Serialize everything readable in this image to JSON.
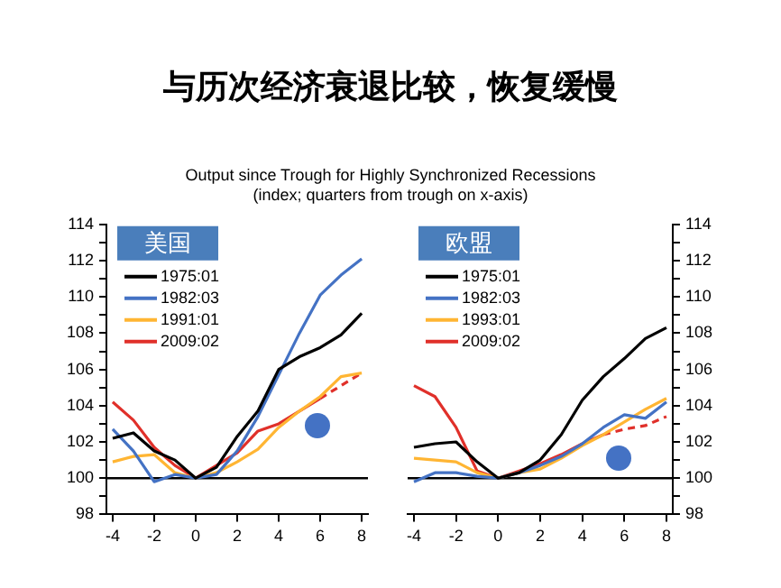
{
  "chart_data": [
    {
      "type": "line",
      "title": "与历次经济衰退比较，恢复缓慢",
      "subtitle": "Output since Trough for Highly Synchronized Recessions\n(index; quarters from trough on x-axis)",
      "annotations": [
        "美国"
      ],
      "x": [
        -4,
        -3,
        -2,
        -1,
        0,
        1,
        2,
        3,
        4,
        5,
        6,
        7,
        8
      ],
      "series": [
        {
          "name": "1975:01",
          "color": "#000000",
          "values": [
            102.2,
            102.5,
            101.5,
            101.0,
            100,
            100.6,
            102.3,
            103.7,
            106.0,
            106.7,
            107.2,
            107.9,
            109.1
          ]
        },
        {
          "name": "1982:03",
          "color": "#4472c4",
          "values": [
            102.7,
            101.5,
            99.8,
            100.2,
            100,
            100.2,
            101.5,
            103.4,
            105.7,
            108.0,
            110.1,
            111.2,
            112.1
          ]
        },
        {
          "name": "1991:01",
          "color": "#ffb533",
          "values": [
            100.9,
            101.2,
            101.3,
            100.3,
            100,
            100.3,
            100.9,
            101.6,
            102.8,
            103.7,
            104.5,
            105.6,
            105.8
          ]
        },
        {
          "name": "2009:02",
          "color": "#e0302a",
          "values": [
            104.2,
            103.2,
            101.7,
            100.7,
            100,
            100.7,
            101.4,
            102.6,
            103.0,
            103.7,
            104.4,
            null,
            null
          ]
        },
        {
          "color": "#e0302a",
          "line_style": "dashed",
          "values": [
            null,
            null,
            null,
            null,
            null,
            null,
            null,
            null,
            null,
            null,
            104.4,
            105.1,
            105.8
          ]
        }
      ],
      "xlim": [
        -4.3,
        8.3
      ],
      "xticks": [
        -4,
        -2,
        0,
        2,
        4,
        6,
        8
      ],
      "ylim": [
        98,
        114
      ],
      "yticks": [
        98,
        {
          "value": 99,
          "label": null
        },
        100,
        {
          "value": 101,
          "label": null
        },
        102,
        {
          "value": 103,
          "label": null
        },
        104,
        {
          "value": 105,
          "label": null
        },
        106,
        {
          "value": 107,
          "label": null
        },
        108,
        {
          "value": 109,
          "label": null
        },
        110,
        {
          "value": 111,
          "label": null
        },
        112,
        {
          "value": 113,
          "label": null
        },
        114
      ],
      "ref_lines": [
        {
          "axis": "y",
          "value": 100,
          "color": "#000000"
        }
      ],
      "grid": false,
      "legend": "top left",
      "marker": "none"
    },
    {
      "type": "line",
      "annotations": [
        "欧盟"
      ],
      "x": [
        -4,
        -3,
        -2,
        -1,
        0,
        1,
        2,
        3,
        4,
        5,
        6,
        7,
        8
      ],
      "series": [
        {
          "name": "1975:01",
          "color": "#000000",
          "axis": "y2",
          "values": [
            101.7,
            101.9,
            102.0,
            100.9,
            100,
            100.3,
            101.0,
            102.4,
            104.3,
            105.6,
            106.6,
            107.7,
            108.3
          ]
        },
        {
          "name": "1982:03",
          "color": "#4472c4",
          "axis": "y2",
          "values": [
            99.8,
            100.3,
            100.3,
            100.1,
            100,
            100.3,
            100.7,
            101.2,
            101.9,
            102.8,
            103.5,
            103.3,
            104.2
          ]
        },
        {
          "name": "1993:01",
          "color": "#ffb533",
          "axis": "y2",
          "values": [
            101.1,
            101.0,
            100.9,
            100.3,
            100,
            100.3,
            100.5,
            101.1,
            101.8,
            102.4,
            103.1,
            103.8,
            104.4
          ]
        },
        {
          "name": "2009:02",
          "color": "#e0302a",
          "axis": "y2",
          "values": [
            105.1,
            104.5,
            102.8,
            100.4,
            100,
            100.4,
            100.8,
            101.3,
            101.9,
            102.4,
            null,
            null,
            null
          ]
        },
        {
          "color": "#e0302a",
          "axis": "y2",
          "line_style": "dashed",
          "values": [
            null,
            null,
            null,
            null,
            null,
            null,
            null,
            null,
            null,
            102.4,
            102.7,
            102.9,
            103.4
          ]
        }
      ],
      "xlim": [
        -4.3,
        8.3
      ],
      "xticks": [
        -4,
        -2,
        0,
        2,
        4,
        6,
        8
      ],
      "y2lim": [
        98,
        114
      ],
      "y2ticks": [
        98,
        {
          "value": 99,
          "label": null
        },
        100,
        {
          "value": 101,
          "label": null
        },
        102,
        {
          "value": 103,
          "label": null
        },
        104,
        {
          "value": 105,
          "label": null
        },
        106,
        {
          "value": 107,
          "label": null
        },
        108,
        {
          "value": 109,
          "label": null
        },
        110,
        {
          "value": 111,
          "label": null
        },
        112,
        {
          "value": 113,
          "label": null
        },
        114
      ],
      "ref_lines": [
        {
          "axis": "y2",
          "value": 100,
          "color": "#000000"
        }
      ],
      "grid": false,
      "legend": "top left",
      "marker": "none"
    }
  ]
}
